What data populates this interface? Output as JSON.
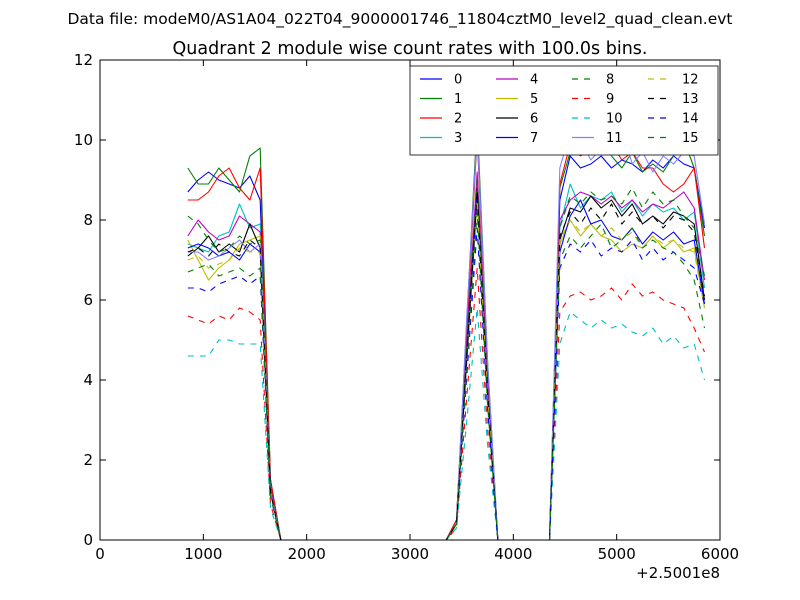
{
  "suptitle": "Data file: modeM0/AS1A04_022T04_9000001746_11804cztM0_level2_quad_clean.evt",
  "chart_data": {
    "type": "line",
    "title": "Quadrant 2 module wise count rates with 100.0s bins.",
    "xlabel": "",
    "ylabel": "",
    "x_offset_label": "+2.5001e8",
    "xlim": [
      0,
      6000
    ],
    "ylim": [
      0,
      12
    ],
    "xticks": [
      0,
      1000,
      2000,
      3000,
      4000,
      5000,
      6000
    ],
    "yticks": [
      0,
      2,
      4,
      6,
      8,
      10,
      12
    ],
    "legend": {
      "placement": "top-right",
      "ncol": 4
    },
    "x": [
      850,
      950,
      1050,
      1150,
      1250,
      1350,
      1450,
      1550,
      1650,
      1750,
      1850,
      1950,
      2050,
      2150,
      2250,
      2350,
      2450,
      2550,
      2650,
      2750,
      2850,
      2950,
      3050,
      3150,
      3250,
      3350,
      3450,
      3550,
      3650,
      3750,
      3850,
      3950,
      4050,
      4150,
      4250,
      4350,
      4450,
      4550,
      4650,
      4750,
      4850,
      4950,
      5050,
      5150,
      5250,
      5350,
      5450,
      5550,
      5650,
      5750,
      5850
    ],
    "series": [
      {
        "name": "0",
        "color": "#0000ff",
        "dash": "solid",
        "values": [
          8.7,
          9.0,
          9.2,
          9.0,
          8.9,
          8.8,
          9.1,
          8.5,
          1.5,
          0,
          0,
          0,
          0,
          0,
          0,
          0,
          0,
          0,
          0,
          0,
          0,
          0,
          0,
          0,
          0,
          0,
          0.5,
          5.0,
          9.0,
          4.0,
          0,
          0,
          0,
          0,
          0,
          0,
          8.5,
          9.6,
          9.3,
          9.4,
          9.6,
          9.3,
          9.5,
          9.4,
          9.2,
          9.5,
          9.3,
          9.6,
          9.4,
          9.3,
          7.8
        ]
      },
      {
        "name": "1",
        "color": "#008000",
        "dash": "solid",
        "values": [
          9.3,
          8.9,
          8.9,
          9.3,
          9.0,
          8.7,
          9.6,
          9.8,
          1.5,
          0,
          0,
          0,
          0,
          0,
          0,
          0,
          0,
          0,
          0,
          0,
          0,
          0,
          0,
          0,
          0,
          0,
          0.5,
          5.5,
          10.5,
          4.5,
          0,
          0,
          0,
          0,
          0,
          0,
          8.8,
          9.7,
          10.4,
          9.8,
          10.0,
          9.6,
          9.3,
          9.7,
          9.2,
          9.4,
          9.2,
          9.6,
          10.0,
          9.3,
          7.6
        ]
      },
      {
        "name": "2",
        "color": "#ff0000",
        "dash": "solid",
        "values": [
          8.5,
          8.5,
          8.7,
          9.1,
          9.3,
          8.8,
          8.5,
          9.3,
          1.5,
          0,
          0,
          0,
          0,
          0,
          0,
          0,
          0,
          0,
          0,
          0,
          0,
          0,
          0,
          0,
          0,
          0,
          0.5,
          5.3,
          10.1,
          4.2,
          0,
          0,
          0,
          0,
          0,
          0,
          8.9,
          9.9,
          9.6,
          9.8,
          10.0,
          9.9,
          9.5,
          9.7,
          9.3,
          9.3,
          8.9,
          8.7,
          8.9,
          9.3,
          7.3
        ]
      },
      {
        "name": "3",
        "color": "#00bfbf",
        "dash": "solid",
        "values": [
          7.4,
          7.3,
          7.2,
          7.6,
          7.7,
          8.4,
          7.8,
          7.9,
          1.3,
          0,
          0,
          0,
          0,
          0,
          0,
          0,
          0,
          0,
          0,
          0,
          0,
          0,
          0,
          0,
          0,
          0,
          0.4,
          4.8,
          9.0,
          3.8,
          0,
          0,
          0,
          0,
          0,
          0,
          7.8,
          8.9,
          8.3,
          8.6,
          8.5,
          8.7,
          8.2,
          8.5,
          8.1,
          8.4,
          8.2,
          8.3,
          8.0,
          8.2,
          6.3
        ]
      },
      {
        "name": "4",
        "color": "#bf00bf",
        "dash": "solid",
        "values": [
          7.6,
          8.0,
          7.7,
          7.5,
          7.6,
          8.1,
          7.9,
          7.7,
          1.3,
          0,
          0,
          0,
          0,
          0,
          0,
          0,
          0,
          0,
          0,
          0,
          0,
          0,
          0,
          0,
          0,
          0,
          0.4,
          5.0,
          9.2,
          4.0,
          0,
          0,
          0,
          0,
          0,
          0,
          8.0,
          8.5,
          8.7,
          8.6,
          8.4,
          8.6,
          8.3,
          8.5,
          8.2,
          8.4,
          8.3,
          8.5,
          8.7,
          8.3,
          6.5
        ]
      },
      {
        "name": "5",
        "color": "#bfbf00",
        "dash": "solid",
        "values": [
          7.5,
          7.0,
          6.5,
          6.8,
          7.0,
          7.4,
          7.5,
          7.6,
          1.2,
          0,
          0,
          0,
          0,
          0,
          0,
          0,
          0,
          0,
          0,
          0,
          0,
          0,
          0,
          0,
          0,
          0,
          0.4,
          4.6,
          8.5,
          3.6,
          0,
          0,
          0,
          0,
          0,
          0,
          7.4,
          8.0,
          7.6,
          7.9,
          7.6,
          7.5,
          7.2,
          7.4,
          7.3,
          7.6,
          7.3,
          7.5,
          7.2,
          7.3,
          5.8
        ]
      },
      {
        "name": "6",
        "color": "#000000",
        "dash": "solid",
        "values": [
          7.1,
          7.3,
          7.6,
          7.2,
          7.4,
          7.2,
          7.9,
          7.3,
          1.2,
          0,
          0,
          0,
          0,
          0,
          0,
          0,
          0,
          0,
          0,
          0,
          0,
          0,
          0,
          0,
          0,
          0,
          0.4,
          4.7,
          8.8,
          3.7,
          0,
          0,
          0,
          0,
          0,
          0,
          7.5,
          8.3,
          8.2,
          8.6,
          8.3,
          8.5,
          8.1,
          8.4,
          7.9,
          8.1,
          7.9,
          8.2,
          8.1,
          7.9,
          6.0
        ]
      },
      {
        "name": "7",
        "color": "#0000ff",
        "dash": "solid",
        "values": [
          7.3,
          7.4,
          7.3,
          7.1,
          7.2,
          7.0,
          7.4,
          7.2,
          1.2,
          0,
          0,
          0,
          0,
          0,
          0,
          0,
          0,
          0,
          0,
          0,
          0,
          0,
          0,
          0,
          0,
          0,
          0.4,
          4.5,
          8.6,
          3.6,
          0,
          0,
          0,
          0,
          0,
          0,
          7.2,
          8.1,
          8.5,
          7.9,
          8.0,
          7.6,
          7.5,
          7.8,
          7.4,
          7.7,
          7.5,
          7.7,
          7.4,
          7.5,
          5.9
        ]
      },
      {
        "name": "8",
        "color": "#008000",
        "dash": "dashed",
        "values": [
          8.1,
          7.9,
          7.5,
          7.2,
          7.3,
          7.6,
          7.4,
          7.5,
          1.3,
          0,
          0,
          0,
          0,
          0,
          0,
          0,
          0,
          0,
          0,
          0,
          0,
          0,
          0,
          0,
          0,
          0,
          0.4,
          4.8,
          9.0,
          3.8,
          0,
          0,
          0,
          0,
          0,
          0,
          7.8,
          8.6,
          8.4,
          8.7,
          8.5,
          8.6,
          8.4,
          8.8,
          8.3,
          8.7,
          8.4,
          8.5,
          8.1,
          7.8,
          6.6
        ]
      },
      {
        "name": "9",
        "color": "#ff0000",
        "dash": "dashed",
        "values": [
          5.6,
          5.5,
          5.4,
          5.6,
          5.5,
          5.8,
          5.7,
          5.5,
          0.9,
          0,
          0,
          0,
          0,
          0,
          0,
          0,
          0,
          0,
          0,
          0,
          0,
          0,
          0,
          0,
          0,
          0,
          0.3,
          3.6,
          6.8,
          2.8,
          0,
          0,
          0,
          0,
          0,
          0,
          5.7,
          6.1,
          6.2,
          6.0,
          6.1,
          6.3,
          6.0,
          6.4,
          6.1,
          6.2,
          6.0,
          5.9,
          5.8,
          5.3,
          4.7
        ]
      },
      {
        "name": "10",
        "color": "#00bfbf",
        "dash": "dashed",
        "values": [
          4.6,
          4.6,
          4.6,
          5.0,
          5.0,
          4.9,
          4.9,
          4.9,
          0.8,
          0,
          0,
          0,
          0,
          0,
          0,
          0,
          0,
          0,
          0,
          0,
          0,
          0,
          0,
          0,
          0,
          0,
          0.3,
          3.0,
          5.8,
          2.4,
          0,
          0,
          0,
          0,
          0,
          0,
          4.9,
          5.7,
          5.5,
          5.3,
          5.5,
          5.3,
          5.4,
          5.2,
          5.1,
          5.3,
          4.9,
          5.1,
          4.8,
          4.9,
          4.0
        ]
      },
      {
        "name": "11",
        "color": "#8080ff",
        "dash": "solid",
        "values": [
          7.2,
          7.2,
          7.0,
          7.1,
          7.3,
          7.5,
          7.2,
          7.4,
          1.2,
          0,
          0,
          0,
          0,
          0,
          0,
          0,
          0,
          0,
          0,
          0,
          0,
          0,
          0,
          0,
          0,
          0,
          0.4,
          5.6,
          10.2,
          4.5,
          0,
          0,
          0,
          0,
          0,
          0,
          9.3,
          10.2,
          10.0,
          9.5,
          9.8,
          9.6,
          10.3,
          9.4,
          9.7,
          9.2,
          9.6,
          9.4,
          9.7,
          9.6,
          7.9
        ]
      },
      {
        "name": "12",
        "color": "#bfbf00",
        "dash": "dashed",
        "values": [
          7.0,
          7.1,
          6.8,
          6.9,
          7.0,
          7.3,
          7.2,
          7.2,
          1.2,
          0,
          0,
          0,
          0,
          0,
          0,
          0,
          0,
          0,
          0,
          0,
          0,
          0,
          0,
          0,
          0,
          0,
          0.4,
          4.5,
          8.5,
          3.6,
          0,
          0,
          0,
          0,
          0,
          0,
          7.5,
          8.0,
          7.7,
          7.9,
          7.6,
          7.8,
          7.5,
          7.7,
          7.3,
          7.6,
          7.4,
          7.5,
          7.3,
          7.2,
          5.8
        ]
      },
      {
        "name": "13",
        "color": "#000000",
        "dash": "dashed",
        "values": [
          7.2,
          7.3,
          7.1,
          7.4,
          7.2,
          7.1,
          7.5,
          7.3,
          1.2,
          0,
          0,
          0,
          0,
          0,
          0,
          0,
          0,
          0,
          0,
          0,
          0,
          0,
          0,
          0,
          0,
          0,
          0.4,
          4.6,
          8.7,
          3.7,
          0,
          0,
          0,
          0,
          0,
          0,
          7.6,
          8.2,
          7.9,
          8.3,
          8.0,
          8.4,
          7.9,
          8.2,
          7.9,
          8.1,
          7.8,
          8.1,
          8.0,
          7.7,
          6.1
        ]
      },
      {
        "name": "14",
        "color": "#0000ff",
        "dash": "dashed",
        "values": [
          6.3,
          6.3,
          6.2,
          6.4,
          6.5,
          6.6,
          6.4,
          6.6,
          1.1,
          0,
          0,
          0,
          0,
          0,
          0,
          0,
          0,
          0,
          0,
          0,
          0,
          0,
          0,
          0,
          0,
          0,
          0.4,
          4.1,
          7.8,
          3.3,
          0,
          0,
          0,
          0,
          0,
          0,
          6.8,
          7.4,
          7.2,
          7.5,
          7.1,
          7.3,
          7.2,
          7.5,
          7.0,
          7.3,
          7.0,
          7.2,
          7.0,
          6.8,
          5.9
        ]
      },
      {
        "name": "15",
        "color": "#008000",
        "dash": "dashed",
        "values": [
          6.7,
          6.8,
          6.9,
          6.6,
          6.7,
          6.8,
          6.6,
          6.8,
          1.1,
          0,
          0,
          0,
          0,
          0,
          0,
          0,
          0,
          0,
          0,
          0,
          0,
          0,
          0,
          0,
          0,
          0,
          0.4,
          4.3,
          8.2,
          3.4,
          0,
          0,
          0,
          0,
          0,
          0,
          7.0,
          7.6,
          7.3,
          7.6,
          7.9,
          7.3,
          7.5,
          7.8,
          7.3,
          7.5,
          7.3,
          7.2,
          6.9,
          6.5,
          5.3
        ]
      }
    ]
  }
}
